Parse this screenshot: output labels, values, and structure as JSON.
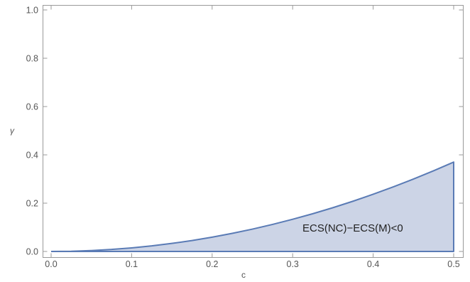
{
  "chart_data": {
    "type": "area",
    "title": "",
    "xlabel": "c",
    "ylabel": "γ",
    "xlim": [
      0.0,
      0.5
    ],
    "ylim": [
      0.0,
      1.0
    ],
    "x_ticks": [
      "0.0",
      "0.1",
      "0.2",
      "0.3",
      "0.4",
      "0.5"
    ],
    "y_ticks": [
      "0.0",
      "0.2",
      "0.4",
      "0.6",
      "0.8",
      "1.0"
    ],
    "grid": false,
    "legend": "none",
    "fill_color": "#ccd4e6",
    "line_color": "#5a7bb5",
    "annotation": "ECS(NC)−ECS(M)<0",
    "series": [
      {
        "x": [
          0.0,
          0.025,
          0.05,
          0.075,
          0.1,
          0.125,
          0.15,
          0.175,
          0.2,
          0.225,
          0.25,
          0.275,
          0.3,
          0.325,
          0.35,
          0.375,
          0.4,
          0.425,
          0.45,
          0.475,
          0.5
        ],
        "values": [
          0.0,
          0.0009,
          0.0037,
          0.0083,
          0.0148,
          0.0231,
          0.0333,
          0.0453,
          0.0592,
          0.0749,
          0.0925,
          0.1119,
          0.1332,
          0.1563,
          0.1813,
          0.2081,
          0.2368,
          0.2673,
          0.2997,
          0.3339,
          0.37
        ]
      }
    ]
  }
}
